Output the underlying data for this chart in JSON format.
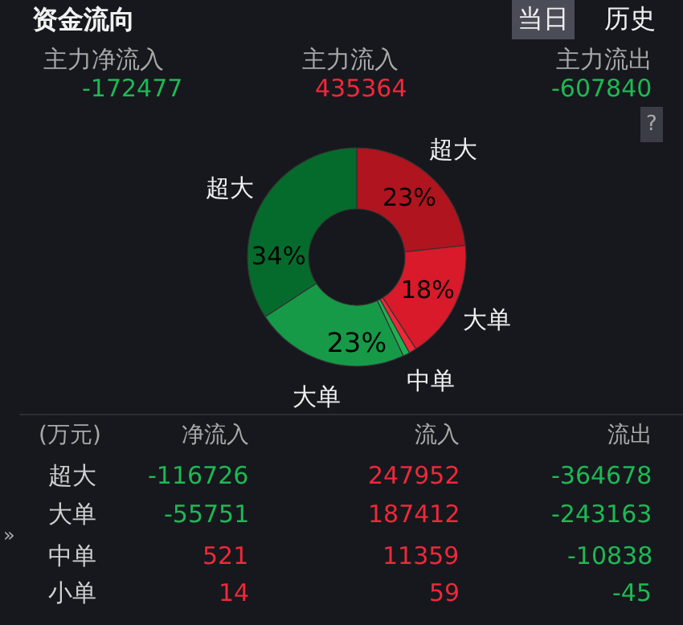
{
  "chart_data": {
    "type": "donut",
    "title": "资金流向",
    "categories": [
      "超大",
      "大单",
      "中单",
      null,
      "大单",
      "超大"
    ],
    "values": [
      23.3,
      17.6,
      1.1,
      1.0,
      22.8,
      34.2
    ],
    "colors": [
      "#b0141f",
      "#d81a2b",
      "#f0283a",
      "#20b050",
      "#179a48",
      "#056b2c"
    ],
    "value_labels": [
      "23%",
      "18%",
      null,
      null,
      "23%",
      "34%"
    ],
    "legend": false,
    "annotations": [
      "当日",
      "历史",
      "主力净流入",
      "主力流入",
      "主力流出",
      "-172477",
      "435364",
      "-607840",
      "?",
      "(万元)",
      "净流入",
      "流入",
      "流出",
      "超大",
      "-116726",
      "247952",
      "-364678",
      "大单",
      "-55751",
      "187412",
      "-243163",
      "中单",
      "521",
      "11359",
      "-10838",
      "小单",
      "14",
      "59",
      "-45",
      "»"
    ]
  }
}
